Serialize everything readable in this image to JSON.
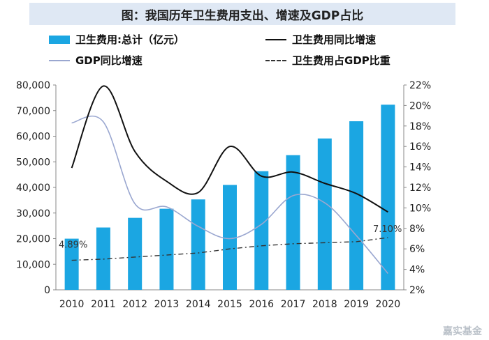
{
  "header": {
    "title": "图：我国历年卫生费用支出、增速及GDP占比"
  },
  "legend": {
    "bar_label": "卫生费用:总计（亿元）",
    "line1_label": "卫生费用同比增速",
    "line2_label": "GDP同比增速",
    "line3_label": "卫生费用占GDP比重"
  },
  "watermark": "嘉实基金",
  "colors": {
    "bar": "#1ba6e2",
    "health_growth": "#111111",
    "gdp_growth": "#9aa7d0",
    "share": "#333333"
  },
  "chart_data": {
    "type": "bar",
    "categories": [
      "2010",
      "2011",
      "2012",
      "2013",
      "2014",
      "2015",
      "2016",
      "2017",
      "2018",
      "2019",
      "2020"
    ],
    "series": [
      {
        "name": "卫生费用:总计（亿元）",
        "type": "bar",
        "axis": "left",
        "values": [
          19980,
          24346,
          28119,
          31669,
          35312,
          40975,
          46345,
          52598,
          59122,
          65841,
          72306
        ]
      },
      {
        "name": "卫生费用同比增速",
        "type": "line",
        "axis": "right",
        "values": [
          13.9,
          21.9,
          15.5,
          12.6,
          11.5,
          16.0,
          13.1,
          13.5,
          12.4,
          11.4,
          9.6
        ]
      },
      {
        "name": "GDP同比增速",
        "type": "line",
        "axis": "right",
        "values": [
          18.3,
          18.4,
          10.4,
          10.1,
          8.2,
          7.0,
          8.4,
          11.2,
          10.5,
          7.3,
          3.6
        ]
      },
      {
        "name": "卫生费用占GDP比重",
        "type": "line",
        "axis": "right",
        "values": [
          4.89,
          5.0,
          5.2,
          5.4,
          5.6,
          6.0,
          6.3,
          6.5,
          6.6,
          6.7,
          7.1
        ]
      }
    ],
    "annotations": [
      "4.89%",
      "7.10%"
    ],
    "yticks_left": [
      "0",
      "10,000",
      "20,000",
      "30,000",
      "40,000",
      "50,000",
      "60,000",
      "70,000",
      "80,000"
    ],
    "yticks_right": [
      "2%",
      "4%",
      "6%",
      "8%",
      "10%",
      "12%",
      "14%",
      "16%",
      "18%",
      "20%",
      "22%"
    ],
    "ylim_left": [
      0,
      80000
    ],
    "ylim_right": [
      2,
      22
    ],
    "grid": false,
    "legend_position": "top"
  }
}
